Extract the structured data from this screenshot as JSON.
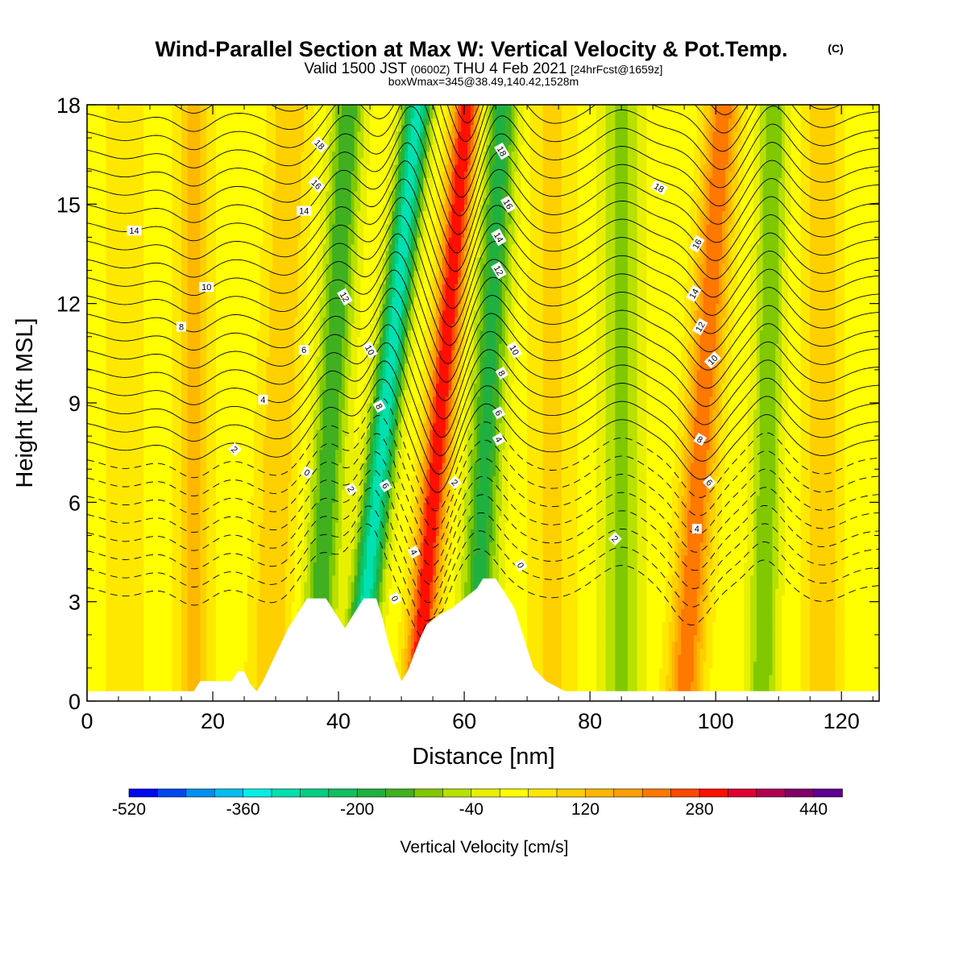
{
  "chart_data": {
    "type": "heatmap",
    "title": "Wind-Parallel Section at Max W: Vertical Velocity & Pot.Temp.",
    "title_suffix": "(C)",
    "subtitle": {
      "part1": "Valid 1500 JST",
      "part2": "(0600Z)",
      "part3": "THU 4 Feb 2021",
      "part4": "[24hrFcst@1659z]"
    },
    "subtitle2": "boxWmax=345@38.49,140.42,1528m",
    "xlabel": "Distance [nm]",
    "ylabel": "Height [Kft MSL]",
    "xlim": [
      0,
      126
    ],
    "ylim": [
      0,
      18
    ],
    "xticks": [
      0,
      20,
      40,
      60,
      80,
      100,
      120
    ],
    "yticks": [
      0,
      3,
      6,
      9,
      12,
      15,
      18
    ],
    "colorbar": {
      "label": "Vertical Velocity [cm/s]",
      "tick_labels": [
        "-520",
        "-360",
        "-200",
        "-40",
        "120",
        "280",
        "440"
      ],
      "tick_values": [
        -520,
        -360,
        -200,
        -40,
        120,
        280,
        440
      ],
      "range": [
        -520,
        480
      ],
      "colors": [
        "#0008f0",
        "#0048f0",
        "#0090f0",
        "#00c0f0",
        "#00f0e8",
        "#00e0b0",
        "#00d080",
        "#10c060",
        "#20b040",
        "#40b020",
        "#80c800",
        "#b8e000",
        "#e8f000",
        "#ffff00",
        "#ffe800",
        "#ffd000",
        "#ffb800",
        "#ffa000",
        "#ff7800",
        "#ff4800",
        "#ff1000",
        "#e00030",
        "#b00050",
        "#800068",
        "#600090"
      ]
    },
    "terrain": [
      {
        "x": 0,
        "h": 0.3
      },
      {
        "x": 17,
        "h": 0.3
      },
      {
        "x": 18,
        "h": 0.6
      },
      {
        "x": 23,
        "h": 0.6
      },
      {
        "x": 24,
        "h": 0.9
      },
      {
        "x": 25,
        "h": 0.9
      },
      {
        "x": 26,
        "h": 0.5
      },
      {
        "x": 27,
        "h": 0.3
      },
      {
        "x": 28,
        "h": 0.6
      },
      {
        "x": 29,
        "h": 1.0
      },
      {
        "x": 30,
        "h": 1.4
      },
      {
        "x": 31,
        "h": 1.8
      },
      {
        "x": 32,
        "h": 2.2
      },
      {
        "x": 33,
        "h": 2.5
      },
      {
        "x": 34,
        "h": 2.8
      },
      {
        "x": 35,
        "h": 3.1
      },
      {
        "x": 38,
        "h": 3.1
      },
      {
        "x": 39,
        "h": 2.8
      },
      {
        "x": 40,
        "h": 2.5
      },
      {
        "x": 41,
        "h": 2.2
      },
      {
        "x": 42,
        "h": 2.5
      },
      {
        "x": 43,
        "h": 2.8
      },
      {
        "x": 44,
        "h": 3.1
      },
      {
        "x": 46,
        "h": 3.1
      },
      {
        "x": 47,
        "h": 2.5
      },
      {
        "x": 48,
        "h": 1.7
      },
      {
        "x": 49,
        "h": 1.1
      },
      {
        "x": 50,
        "h": 0.6
      },
      {
        "x": 51,
        "h": 0.9
      },
      {
        "x": 52,
        "h": 1.4
      },
      {
        "x": 53,
        "h": 1.9
      },
      {
        "x": 54,
        "h": 2.3
      },
      {
        "x": 56,
        "h": 2.6
      },
      {
        "x": 58,
        "h": 2.8
      },
      {
        "x": 60,
        "h": 3.1
      },
      {
        "x": 62,
        "h": 3.4
      },
      {
        "x": 63,
        "h": 3.7
      },
      {
        "x": 65,
        "h": 3.7
      },
      {
        "x": 66,
        "h": 3.4
      },
      {
        "x": 67,
        "h": 3.1
      },
      {
        "x": 68,
        "h": 2.8
      },
      {
        "x": 69,
        "h": 2.2
      },
      {
        "x": 70,
        "h": 1.6
      },
      {
        "x": 71,
        "h": 1.0
      },
      {
        "x": 73,
        "h": 0.6
      },
      {
        "x": 76,
        "h": 0.3
      },
      {
        "x": 77,
        "h": 0.3
      },
      {
        "x": 126,
        "h": 0.3
      }
    ],
    "w_features": [
      {
        "x": 6,
        "w": 60,
        "xs": 3,
        "tilt": 0
      },
      {
        "x": 17,
        "w": 110,
        "xs": 2.5,
        "tilt": 0
      },
      {
        "x": 30,
        "w": 100,
        "xs": 3,
        "tilt": 0.2
      },
      {
        "x": 38,
        "w": -180,
        "xs": 2.5,
        "tilt": 0.3
      },
      {
        "x": 46,
        "w": -330,
        "xs": 2.2,
        "tilt": 0.55
      },
      {
        "x": 55,
        "w": 300,
        "xs": 2.2,
        "tilt": 0.45
      },
      {
        "x": 63,
        "w": -200,
        "xs": 2.6,
        "tilt": 0.25
      },
      {
        "x": 74,
        "w": 70,
        "xs": 3.5,
        "tilt": 0
      },
      {
        "x": 85,
        "w": -110,
        "xs": 3,
        "tilt": 0
      },
      {
        "x": 97,
        "w": 220,
        "xs": 2.6,
        "tilt": 0.35
      },
      {
        "x": 108,
        "w": -140,
        "xs": 2.2,
        "tilt": 0.1
      },
      {
        "x": 117,
        "w": 90,
        "xs": 3,
        "tilt": 0
      }
    ],
    "theta_contours": {
      "levels_c": [
        -8,
        -7,
        -6,
        -5,
        -4,
        -3,
        -2,
        -1,
        0,
        1,
        2,
        3,
        4,
        5,
        6,
        7,
        8,
        9,
        10,
        11,
        12,
        13,
        14,
        15,
        16,
        17,
        18,
        19,
        20,
        21
      ],
      "labels": [
        {
          "text": "18",
          "x": 37,
          "y": 16.8,
          "rot": 45
        },
        {
          "text": "16",
          "x": 36.5,
          "y": 15.6,
          "rot": 45
        },
        {
          "text": "14",
          "x": 34.5,
          "y": 14.8,
          "rot": 0
        },
        {
          "text": "12",
          "x": 41,
          "y": 12.2,
          "rot": 60
        },
        {
          "text": "10",
          "x": 45,
          "y": 10.6,
          "rot": 60
        },
        {
          "text": "8",
          "x": 46.5,
          "y": 8.9,
          "rot": 60
        },
        {
          "text": "6",
          "x": 47.5,
          "y": 6.5,
          "rot": 60
        },
        {
          "text": "4",
          "x": 52,
          "y": 4.5,
          "rot": 60
        },
        {
          "text": "0",
          "x": 49,
          "y": 3.1,
          "rot": 60
        },
        {
          "text": "2",
          "x": 42,
          "y": 6.4,
          "rot": 60
        },
        {
          "text": "0",
          "x": 35,
          "y": 6.9,
          "rot": 30
        },
        {
          "text": "2",
          "x": 23.5,
          "y": 7.6,
          "rot": 45
        },
        {
          "text": "4",
          "x": 28,
          "y": 9.1,
          "rot": 0
        },
        {
          "text": "6",
          "x": 34.5,
          "y": 10.6,
          "rot": 0
        },
        {
          "text": "8",
          "x": 15,
          "y": 11.3,
          "rot": 0
        },
        {
          "text": "10",
          "x": 19,
          "y": 12.5,
          "rot": 0
        },
        {
          "text": "14",
          "x": 7.5,
          "y": 14.2,
          "rot": 0
        },
        {
          "text": "18",
          "x": 66,
          "y": 16.6,
          "rot": 60
        },
        {
          "text": "16",
          "x": 67,
          "y": 15.0,
          "rot": 60
        },
        {
          "text": "14",
          "x": 65.5,
          "y": 14.0,
          "rot": 60
        },
        {
          "text": "12",
          "x": 65.5,
          "y": 13.0,
          "rot": 60
        },
        {
          "text": "10",
          "x": 68,
          "y": 10.6,
          "rot": 60
        },
        {
          "text": "8",
          "x": 66,
          "y": 9.9,
          "rot": 60
        },
        {
          "text": "6",
          "x": 65.5,
          "y": 8.7,
          "rot": 60
        },
        {
          "text": "4",
          "x": 65.5,
          "y": 7.9,
          "rot": 60
        },
        {
          "text": "2",
          "x": 58.5,
          "y": 6.6,
          "rot": 45
        },
        {
          "text": "0",
          "x": 69,
          "y": 4.1,
          "rot": 60
        },
        {
          "text": "2",
          "x": 84,
          "y": 4.9,
          "rot": 45
        },
        {
          "text": "4",
          "x": 97,
          "y": 5.2,
          "rot": 0
        },
        {
          "text": "6",
          "x": 99,
          "y": 6.6,
          "rot": 45
        },
        {
          "text": "8",
          "x": 97.5,
          "y": 7.9,
          "rot": 30
        },
        {
          "text": "10",
          "x": 99.5,
          "y": 10.3,
          "rot": -45
        },
        {
          "text": "12",
          "x": 97.5,
          "y": 11.3,
          "rot": -60
        },
        {
          "text": "14",
          "x": 96.5,
          "y": 12.3,
          "rot": -60
        },
        {
          "text": "16",
          "x": 97,
          "y": 13.8,
          "rot": -60
        },
        {
          "text": "18",
          "x": 91,
          "y": 15.5,
          "rot": 30
        }
      ]
    }
  }
}
